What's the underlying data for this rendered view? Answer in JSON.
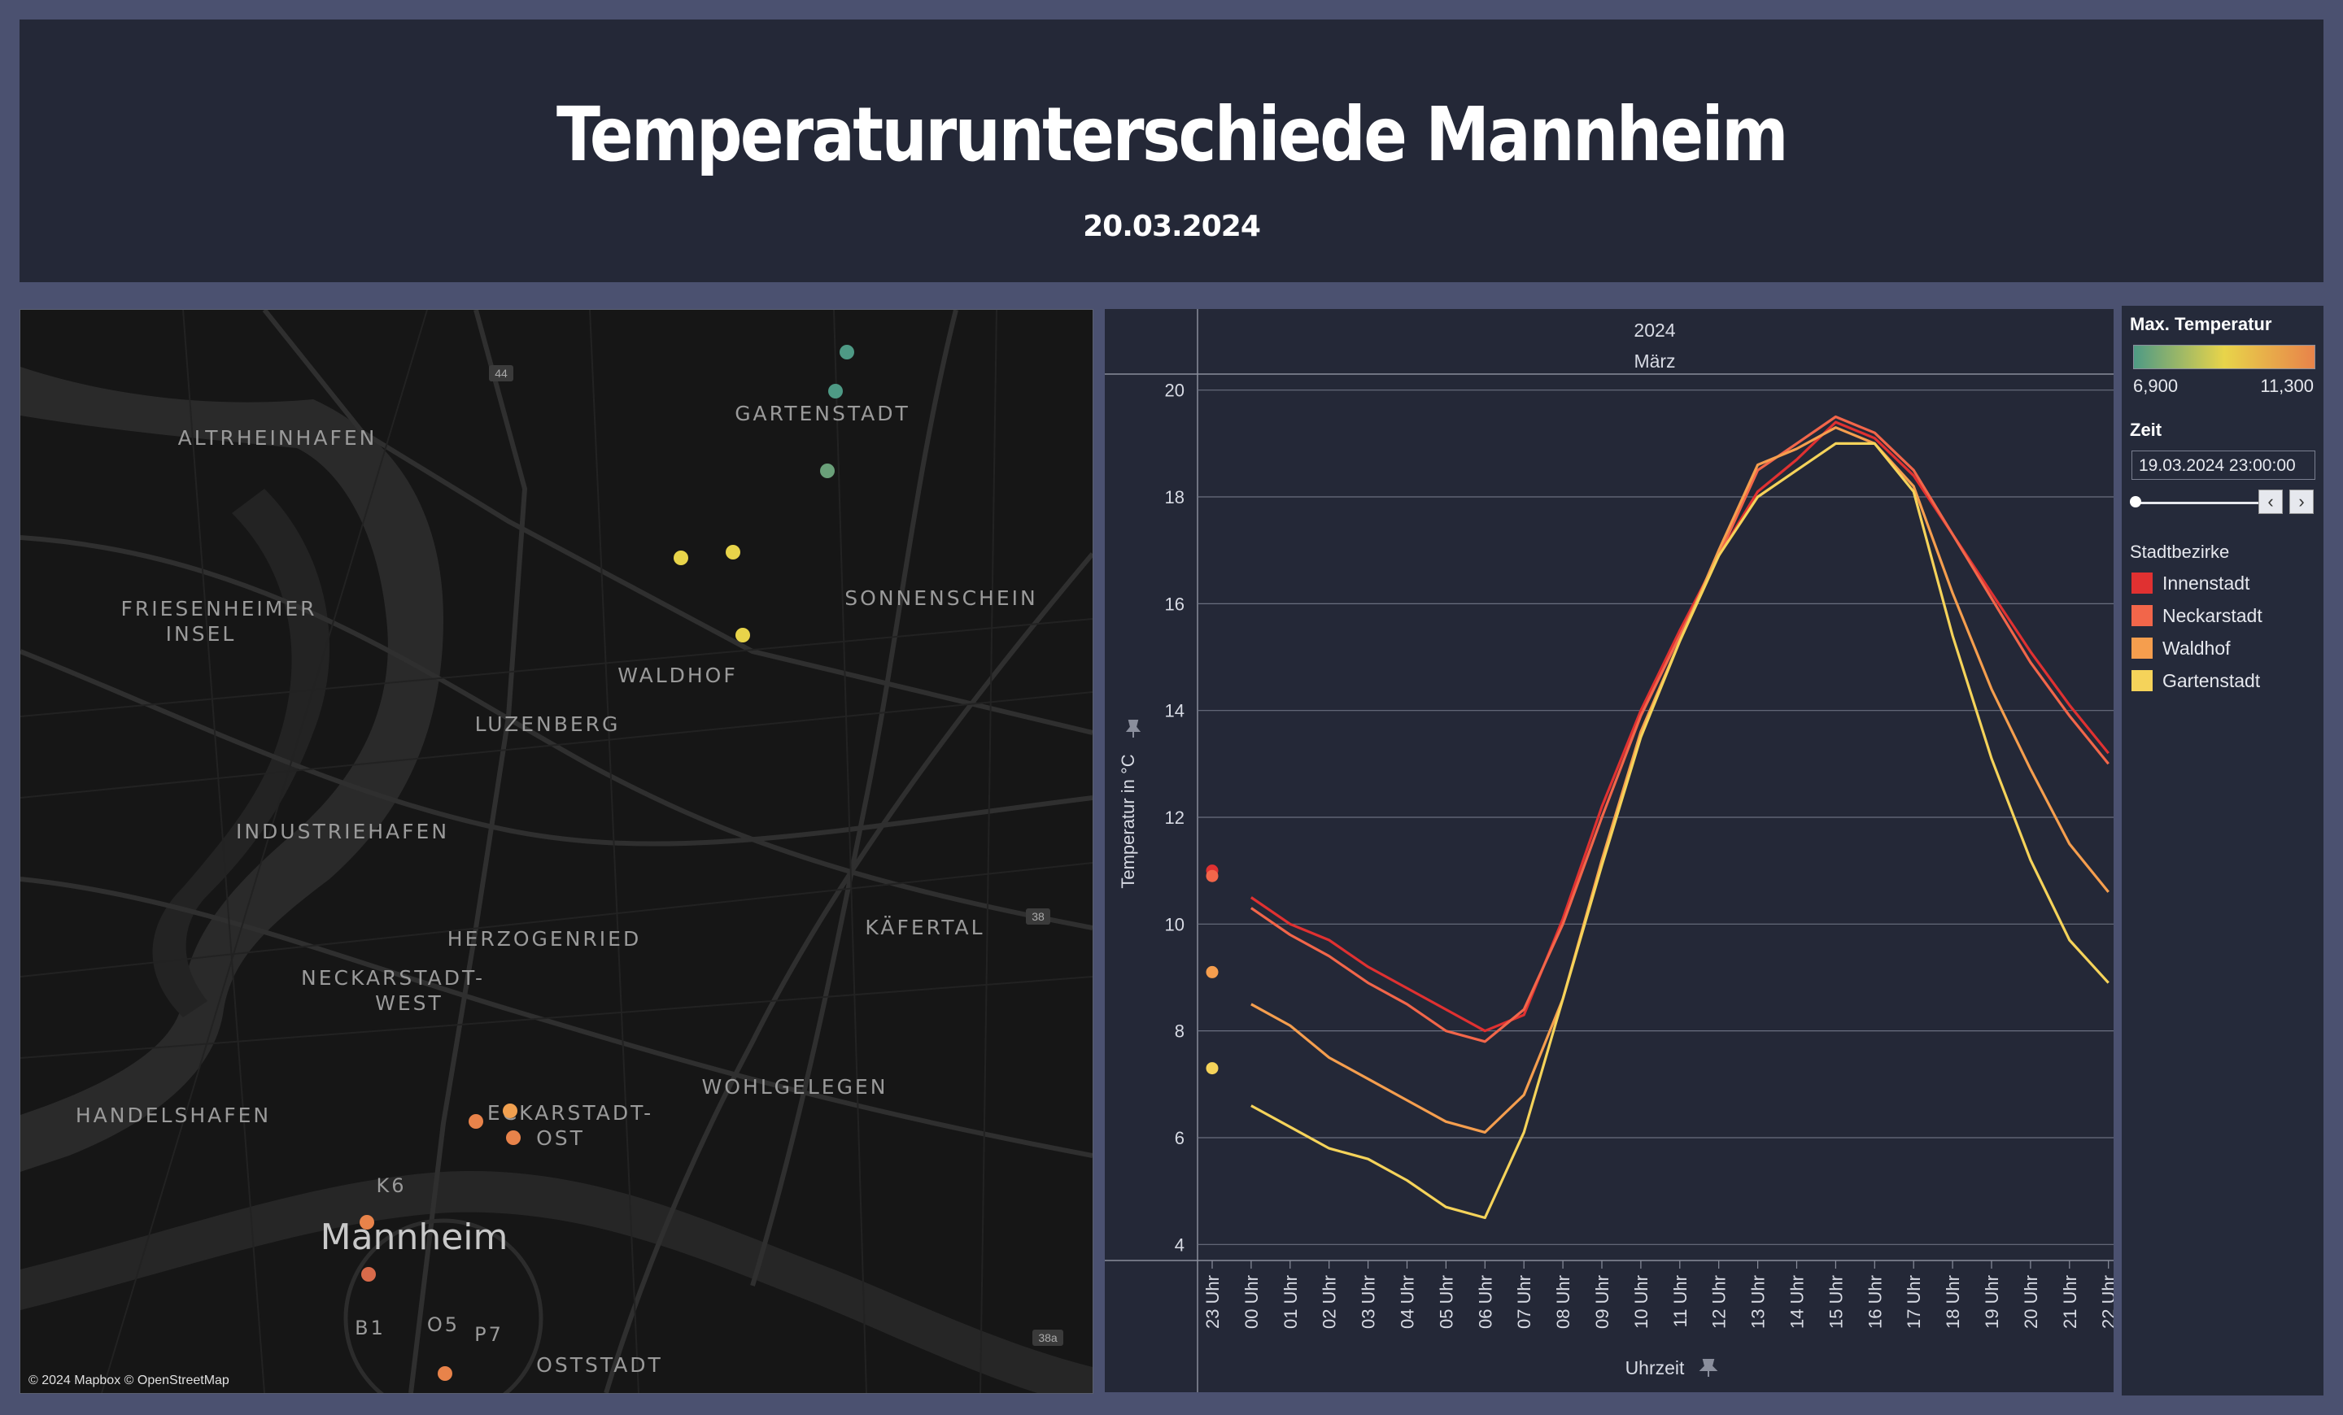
{
  "header": {
    "title": "Temperaturunterschiede Mannheim",
    "date": "20.03.2024"
  },
  "map": {
    "attribution": "© 2024 Mapbox © OpenStreetMap",
    "labels": [
      "ALTRHEINHAFEN",
      "GARTENSTADT",
      "FRIESENHEIMER",
      "INSEL",
      "SONNENSCHEIN",
      "WALDHOF",
      "LUZENBERG",
      "INDUSTRIEHAFEN",
      "HERZOGENRIED",
      "KÄFERTAL",
      "NECKARSTADT-",
      "WEST",
      "HANDELSHAFEN",
      "WOHLGELEGEN",
      "ECKARSTADT-",
      "OST",
      "K6",
      "Mannheim",
      "B1",
      "O5",
      "P7",
      "OSTSTADT"
    ],
    "road_badges": [
      "44",
      "38",
      "38a"
    ]
  },
  "side": {
    "color_title": "Max. Temperatur",
    "color_min": "6,900",
    "color_max": "11,300",
    "gradient_colors": [
      "#4e9a85",
      "#e8d44a",
      "#e8834a"
    ],
    "time_title": "Zeit",
    "time_value": "19.03.2024 23:00:00",
    "legend_title": "Stadtbezirke",
    "legend": [
      {
        "name": "Innenstadt",
        "color": "#e03131"
      },
      {
        "name": "Neckarstadt",
        "color": "#f2664a"
      },
      {
        "name": "Waldhof",
        "color": "#f59e4e"
      },
      {
        "name": "Gartenstadt",
        "color": "#f5d35a"
      }
    ]
  },
  "chart_data": {
    "type": "line",
    "header_year": "2024",
    "header_month": "März",
    "ylabel": "Temperatur in °C",
    "xlabel": "Uhrzeit",
    "ylim": [
      3.7,
      20.3
    ],
    "yticks": [
      4,
      6,
      8,
      10,
      12,
      14,
      16,
      18,
      20
    ],
    "categories": [
      "23 Uhr",
      "00 Uhr",
      "01 Uhr",
      "02 Uhr",
      "03 Uhr",
      "04 Uhr",
      "05 Uhr",
      "06 Uhr",
      "07 Uhr",
      "08 Uhr",
      "09 Uhr",
      "10 Uhr",
      "11 Uhr",
      "12 Uhr",
      "13 Uhr",
      "14 Uhr",
      "15 Uhr",
      "16 Uhr",
      "17 Uhr",
      "18 Uhr",
      "19 Uhr",
      "20 Uhr",
      "21 Uhr",
      "22 Uhr"
    ],
    "series": [
      {
        "name": "Innenstadt",
        "color": "#e03131",
        "first_point": 11.0,
        "values": [
          null,
          10.5,
          10.0,
          9.7,
          9.2,
          8.8,
          8.4,
          8.0,
          8.3,
          10.1,
          12.2,
          14.0,
          15.5,
          16.9,
          18.1,
          18.7,
          19.4,
          19.1,
          18.4,
          17.3,
          16.2,
          15.1,
          14.1,
          13.2
        ]
      },
      {
        "name": "Neckarstadt",
        "color": "#f2664a",
        "first_point": 10.9,
        "values": [
          null,
          10.3,
          9.8,
          9.4,
          8.9,
          8.5,
          8.0,
          7.8,
          8.4,
          10.0,
          12.0,
          13.9,
          15.4,
          16.9,
          18.5,
          19.0,
          19.5,
          19.2,
          18.5,
          17.3,
          16.1,
          14.9,
          13.9,
          13.0
        ]
      },
      {
        "name": "Waldhof",
        "color": "#f59e4e",
        "first_point": 9.1,
        "values": [
          null,
          8.5,
          8.1,
          7.5,
          7.1,
          6.7,
          6.3,
          6.1,
          6.8,
          8.6,
          11.2,
          13.6,
          15.3,
          17.0,
          18.6,
          18.9,
          19.3,
          19.0,
          18.2,
          16.2,
          14.4,
          12.9,
          11.5,
          10.6
        ]
      },
      {
        "name": "Gartenstadt",
        "color": "#f5d35a",
        "first_point": 7.3,
        "values": [
          null,
          6.6,
          6.2,
          5.8,
          5.6,
          5.2,
          4.7,
          4.5,
          6.1,
          8.6,
          11.1,
          13.5,
          15.3,
          16.9,
          18.0,
          18.5,
          19.0,
          19.0,
          18.1,
          15.4,
          13.1,
          11.2,
          9.7,
          8.9
        ]
      }
    ]
  }
}
